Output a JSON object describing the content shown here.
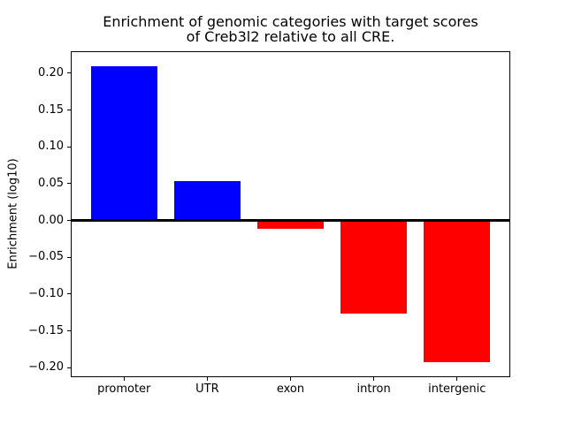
{
  "figure": {
    "background": "#ffffff",
    "axis_color": "#000000"
  },
  "chart_data": {
    "type": "bar",
    "title": "Enrichment of genomic categories with target scores\nof Creb3l2 relative to all CRE.",
    "xlabel": "",
    "ylabel": "Enrichment (log10)",
    "categories": [
      "promoter",
      "UTR",
      "exon",
      "intron",
      "intergenic"
    ],
    "values": [
      0.21,
      0.054,
      -0.011,
      -0.126,
      -0.193
    ],
    "bar_colors": [
      "#0000ff",
      "#0000ff",
      "#ff0000",
      "#ff0000",
      "#ff0000"
    ],
    "positive_color": "#0000ff",
    "negative_color": "#ff0000",
    "ylim": [
      -0.213,
      0.23
    ],
    "yticks": [
      0.2,
      0.15,
      0.1,
      0.05,
      0.0,
      -0.05,
      -0.1,
      -0.15,
      -0.2
    ],
    "ytick_labels": [
      "0.20",
      "0.15",
      "0.10",
      "0.05",
      "0.00",
      "−0.05",
      "−0.10",
      "−0.15",
      "−0.20"
    ],
    "bar_width_fraction": 0.8,
    "grid": false,
    "legend": null,
    "zero_line": true
  }
}
